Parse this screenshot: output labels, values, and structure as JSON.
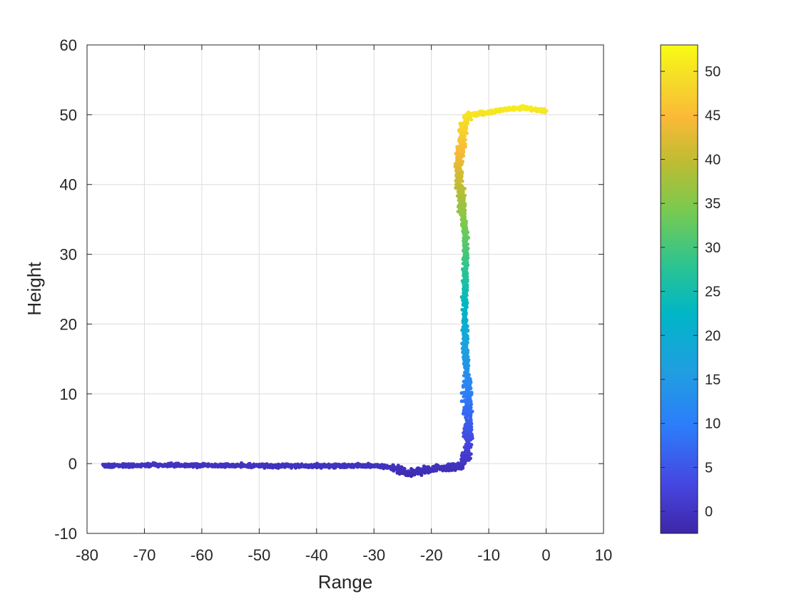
{
  "chart_data": {
    "type": "scatter",
    "xlabel": "Range",
    "ylabel": "Height",
    "xlim": [
      -80,
      10
    ],
    "ylim": [
      -10,
      60
    ],
    "xticks": [
      "-80",
      "-70",
      "-60",
      "-50",
      "-40",
      "-30",
      "-20",
      "-10",
      "0",
      "10"
    ],
    "yticks": [
      "-10",
      "0",
      "10",
      "20",
      "30",
      "40",
      "50",
      "60"
    ],
    "grid": true,
    "colormap": "parula",
    "colorbar": {
      "range": [
        -2.5,
        53
      ],
      "ticks": [
        "0",
        "5",
        "10",
        "15",
        "20",
        "25",
        "30",
        "35",
        "40",
        "45",
        "50"
      ]
    },
    "path": [
      [
        -77,
        -0.3
      ],
      [
        -70,
        -0.2
      ],
      [
        -60,
        -0.2
      ],
      [
        -50,
        -0.3
      ],
      [
        -40,
        -0.3
      ],
      [
        -30,
        -0.3
      ],
      [
        -26,
        -0.7
      ],
      [
        -24,
        -1.5
      ],
      [
        -22,
        -1.1
      ],
      [
        -20,
        -0.7
      ],
      [
        -17,
        -0.6
      ],
      [
        -15,
        -0.4
      ],
      [
        -14,
        0.5
      ],
      [
        -13.6,
        3
      ],
      [
        -13.6,
        8
      ],
      [
        -13.8,
        12
      ],
      [
        -14.1,
        16
      ],
      [
        -14.2,
        22
      ],
      [
        -14.1,
        28
      ],
      [
        -14.1,
        33
      ],
      [
        -14.6,
        37
      ],
      [
        -15.2,
        40
      ],
      [
        -15.2,
        43
      ],
      [
        -14.7,
        46
      ],
      [
        -14.4,
        48.5
      ],
      [
        -13.5,
        50
      ],
      [
        -10,
        50.3
      ],
      [
        -7,
        50.8
      ],
      [
        -4,
        51
      ],
      [
        0,
        50.5
      ]
    ]
  }
}
